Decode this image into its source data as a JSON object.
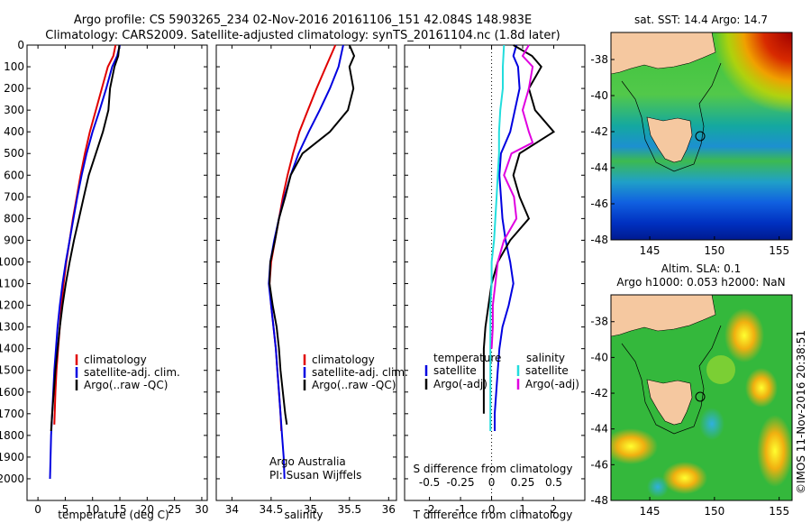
{
  "header": {
    "line1": "Argo profile: CS 5903265_234 02-Nov-2016 20161106_151 42.084S 148.983E",
    "line2": "Climatology: CARS2009. Satellite-adjusted climatology: synTS_20161104.nc (1.8d later)"
  },
  "credits": {
    "org": "Argo Australia",
    "pi": "PI: Susan Wijffels",
    "imos": "©IMOS 11-Nov-2016 20:38:51"
  },
  "colors": {
    "climatology": "#e00000",
    "satellite": "#0000e0",
    "argo": "#000000",
    "sal_satellite": "#22dddd",
    "sal_argo": "#e000e0"
  },
  "maps": {
    "sst_title": "sat. SST: 14.4  Argo: 14.7",
    "sla_title1": "Altim. SLA: 0.1",
    "sla_title2": "Argo h1000: 0.053 h2000: NaN",
    "lon_ticks": [
      "145",
      "150",
      "155"
    ],
    "lat_ticks": [
      "-38",
      "-40",
      "-42",
      "-44",
      "-46",
      "-48"
    ],
    "float_position": {
      "lon": 148.983,
      "lat": -42.084
    }
  },
  "chart_data": [
    {
      "type": "line",
      "xlabel": "temperature (deg C)",
      "ylabel": "",
      "xlim": [
        -2,
        31
      ],
      "ylim": [
        2100,
        0
      ],
      "x_ticks": [
        0,
        5,
        10,
        15,
        20,
        25,
        30
      ],
      "y_ticks": [
        0,
        100,
        200,
        300,
        400,
        500,
        600,
        700,
        800,
        900,
        1000,
        1100,
        1200,
        1300,
        1400,
        1500,
        1600,
        1700,
        1800,
        1900,
        2000
      ],
      "legend": [
        "climatology",
        "satellite-adj. clim.",
        "Argo(..raw -QC)"
      ],
      "legend_position": "lower-right",
      "series": [
        {
          "name": "climatology",
          "color_key": "climatology",
          "x": [
            14.2,
            13.8,
            12.8,
            11.7,
            10.6,
            9.5,
            8.6,
            7.8,
            7.1,
            6.4,
            5.8,
            5.2,
            4.7,
            4.3,
            4.0,
            3.7,
            3.4,
            3.2,
            3.0
          ],
          "y": [
            0,
            50,
            100,
            200,
            300,
            400,
            500,
            600,
            700,
            800,
            900,
            1000,
            1100,
            1200,
            1300,
            1400,
            1500,
            1600,
            1750
          ]
        },
        {
          "name": "satellite-adj. clim.",
          "color_key": "satellite",
          "x": [
            15.0,
            14.5,
            13.6,
            12.5,
            11.3,
            10.0,
            8.9,
            8.0,
            7.2,
            6.5,
            5.8,
            5.1,
            4.5,
            4.0,
            3.6,
            3.3,
            3.0,
            2.8,
            2.6,
            2.4,
            2.3,
            2.2
          ],
          "y": [
            0,
            50,
            100,
            200,
            300,
            400,
            500,
            600,
            700,
            800,
            900,
            1000,
            1100,
            1200,
            1300,
            1400,
            1500,
            1600,
            1700,
            1800,
            1900,
            2000
          ]
        },
        {
          "name": "Argo(..raw -QC)",
          "color_key": "argo",
          "x": [
            14.9,
            14.7,
            14.0,
            13.2,
            12.9,
            11.9,
            10.6,
            9.3,
            8.4,
            7.5,
            6.6,
            5.8,
            5.1,
            4.5,
            4.0,
            3.6,
            3.2,
            2.9,
            2.6,
            2.4
          ],
          "y": [
            0,
            50,
            100,
            200,
            300,
            400,
            500,
            600,
            700,
            800,
            900,
            1000,
            1100,
            1200,
            1300,
            1400,
            1500,
            1600,
            1700,
            1780
          ]
        }
      ]
    },
    {
      "type": "line",
      "xlabel": "salinity",
      "ylabel": "",
      "xlim": [
        33.8,
        36.1
      ],
      "ylim": [
        2100,
        0
      ],
      "x_ticks": [
        34,
        34.5,
        35,
        35.5,
        36
      ],
      "legend": [
        "climatology",
        "satellite-adj. clim.",
        "Argo(..raw -QC)"
      ],
      "legend_position": "lower-right",
      "series": [
        {
          "name": "climatology",
          "color_key": "climatology",
          "x": [
            35.32,
            35.2,
            35.08,
            34.97,
            34.86,
            34.78,
            34.71,
            34.65,
            34.6,
            34.55,
            34.5,
            34.48,
            34.5,
            34.53,
            34.56,
            34.58,
            34.6,
            34.62,
            34.63
          ],
          "y": [
            0,
            100,
            200,
            300,
            400,
            500,
            600,
            700,
            800,
            900,
            1000,
            1100,
            1200,
            1300,
            1400,
            1500,
            1600,
            1700,
            1780
          ]
        },
        {
          "name": "satellite-adj. clim.",
          "color_key": "satellite",
          "x": [
            35.42,
            35.36,
            35.25,
            35.12,
            34.98,
            34.85,
            34.75,
            34.67,
            34.6,
            34.54,
            34.49,
            34.47,
            34.5,
            34.53,
            34.56,
            34.58,
            34.6,
            34.62,
            34.64,
            34.66,
            34.67
          ],
          "y": [
            0,
            100,
            200,
            300,
            400,
            500,
            600,
            700,
            800,
            900,
            1000,
            1100,
            1200,
            1300,
            1400,
            1500,
            1600,
            1700,
            1800,
            1900,
            2000
          ]
        },
        {
          "name": "Argo(..raw -QC)",
          "color_key": "argo",
          "x": [
            35.5,
            35.56,
            35.5,
            35.55,
            35.48,
            35.25,
            34.9,
            34.75,
            34.68,
            34.6,
            34.55,
            34.49,
            34.48,
            34.52,
            34.57,
            34.6,
            34.62,
            34.65,
            34.68,
            34.7
          ],
          "y": [
            0,
            50,
            100,
            200,
            300,
            400,
            500,
            600,
            700,
            800,
            900,
            1000,
            1100,
            1200,
            1300,
            1400,
            1500,
            1600,
            1700,
            1750
          ]
        }
      ]
    },
    {
      "type": "line",
      "xlabel": "T difference from climatology",
      "x2label": "S difference from climatology",
      "ylabel": "",
      "xlim": [
        -2.8,
        3.0
      ],
      "ylim": [
        2100,
        0
      ],
      "x_ticks": [
        -2,
        -1,
        0,
        1,
        2
      ],
      "x2_ticks": [
        -0.5,
        -0.25,
        0,
        0.25,
        0.5
      ],
      "legend_titles": [
        "temperature",
        "salinity"
      ],
      "legend": [
        "satellite",
        "Argo(-adj)",
        "satellite",
        "Argo(-adj)"
      ],
      "legend_position": "lower-center",
      "series": [
        {
          "name": "satellite",
          "group": "temperature",
          "color_key": "satellite",
          "x": [
            0.8,
            0.7,
            0.85,
            0.9,
            0.75,
            0.6,
            0.3,
            0.25,
            0.3,
            0.35,
            0.45,
            0.6,
            0.7,
            0.55,
            0.35,
            0.25,
            0.2,
            0.15,
            0.1,
            0.1
          ],
          "y": [
            0,
            50,
            100,
            200,
            300,
            400,
            500,
            600,
            700,
            800,
            900,
            1000,
            1100,
            1200,
            1300,
            1400,
            1500,
            1600,
            1700,
            1780
          ]
        },
        {
          "name": "Argo(-adj)",
          "group": "temperature",
          "color_key": "argo",
          "x": [
            0.7,
            1.3,
            1.6,
            1.2,
            1.4,
            2.0,
            0.9,
            0.7,
            0.9,
            1.2,
            0.6,
            0.2,
            0.0,
            -0.1,
            -0.2,
            -0.25,
            -0.25,
            -0.25,
            -0.25
          ],
          "y": [
            0,
            50,
            100,
            200,
            300,
            400,
            500,
            600,
            700,
            800,
            900,
            1000,
            1100,
            1200,
            1300,
            1400,
            1500,
            1600,
            1700
          ]
        },
        {
          "name": "satellite",
          "group": "salinity",
          "color_key": "sal_satellite",
          "x": [
            0.1,
            0.09,
            0.09,
            0.07,
            0.06,
            0.06,
            0.05,
            0.04,
            0.03,
            0.02,
            0.0,
            0.0,
            -0.01,
            -0.01,
            -0.01,
            -0.01,
            -0.01,
            -0.01,
            -0.01
          ],
          "y": [
            0,
            100,
            200,
            300,
            400,
            500,
            600,
            700,
            800,
            900,
            1000,
            1100,
            1200,
            1300,
            1400,
            1500,
            1600,
            1700,
            1780
          ]
        },
        {
          "name": "Argo(-adj)",
          "group": "salinity",
          "color_key": "sal_argo",
          "x": [
            0.3,
            0.25,
            0.33,
            0.3,
            0.25,
            0.3,
            0.33,
            0.16,
            0.1,
            0.18,
            0.2,
            0.1,
            0.05,
            0.03,
            0.01,
            0.01,
            0.0
          ],
          "y": [
            0,
            50,
            100,
            200,
            300,
            400,
            450,
            500,
            600,
            700,
            800,
            900,
            1000,
            1100,
            1200,
            1300,
            1400
          ]
        }
      ]
    }
  ]
}
